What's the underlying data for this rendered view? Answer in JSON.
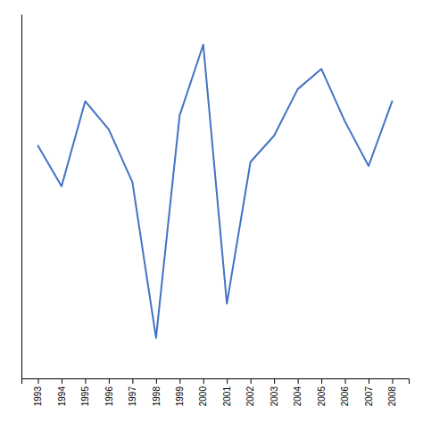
{
  "chart_data": {
    "type": "line",
    "x": [
      1993,
      1994,
      1995,
      1996,
      1997,
      1998,
      1999,
      2000,
      2001,
      2002,
      2003,
      2004,
      2005,
      2006,
      2007,
      2008
    ],
    "values": [
      0.3,
      0.1,
      0.52,
      0.38,
      0.12,
      -0.65,
      0.45,
      0.8,
      -0.48,
      0.22,
      0.35,
      0.58,
      0.68,
      0.42,
      0.2,
      0.52
    ],
    "color": "#4472C4",
    "xlim": [
      1992.3,
      2008.7
    ],
    "xticks": [
      1993,
      1994,
      1995,
      1996,
      1997,
      1998,
      1999,
      2000,
      2001,
      2002,
      2003,
      2004,
      2005,
      2006,
      2007,
      2008
    ],
    "ylim": [
      -0.85,
      0.95
    ],
    "grid": false,
    "tick_labels": "x"
  }
}
